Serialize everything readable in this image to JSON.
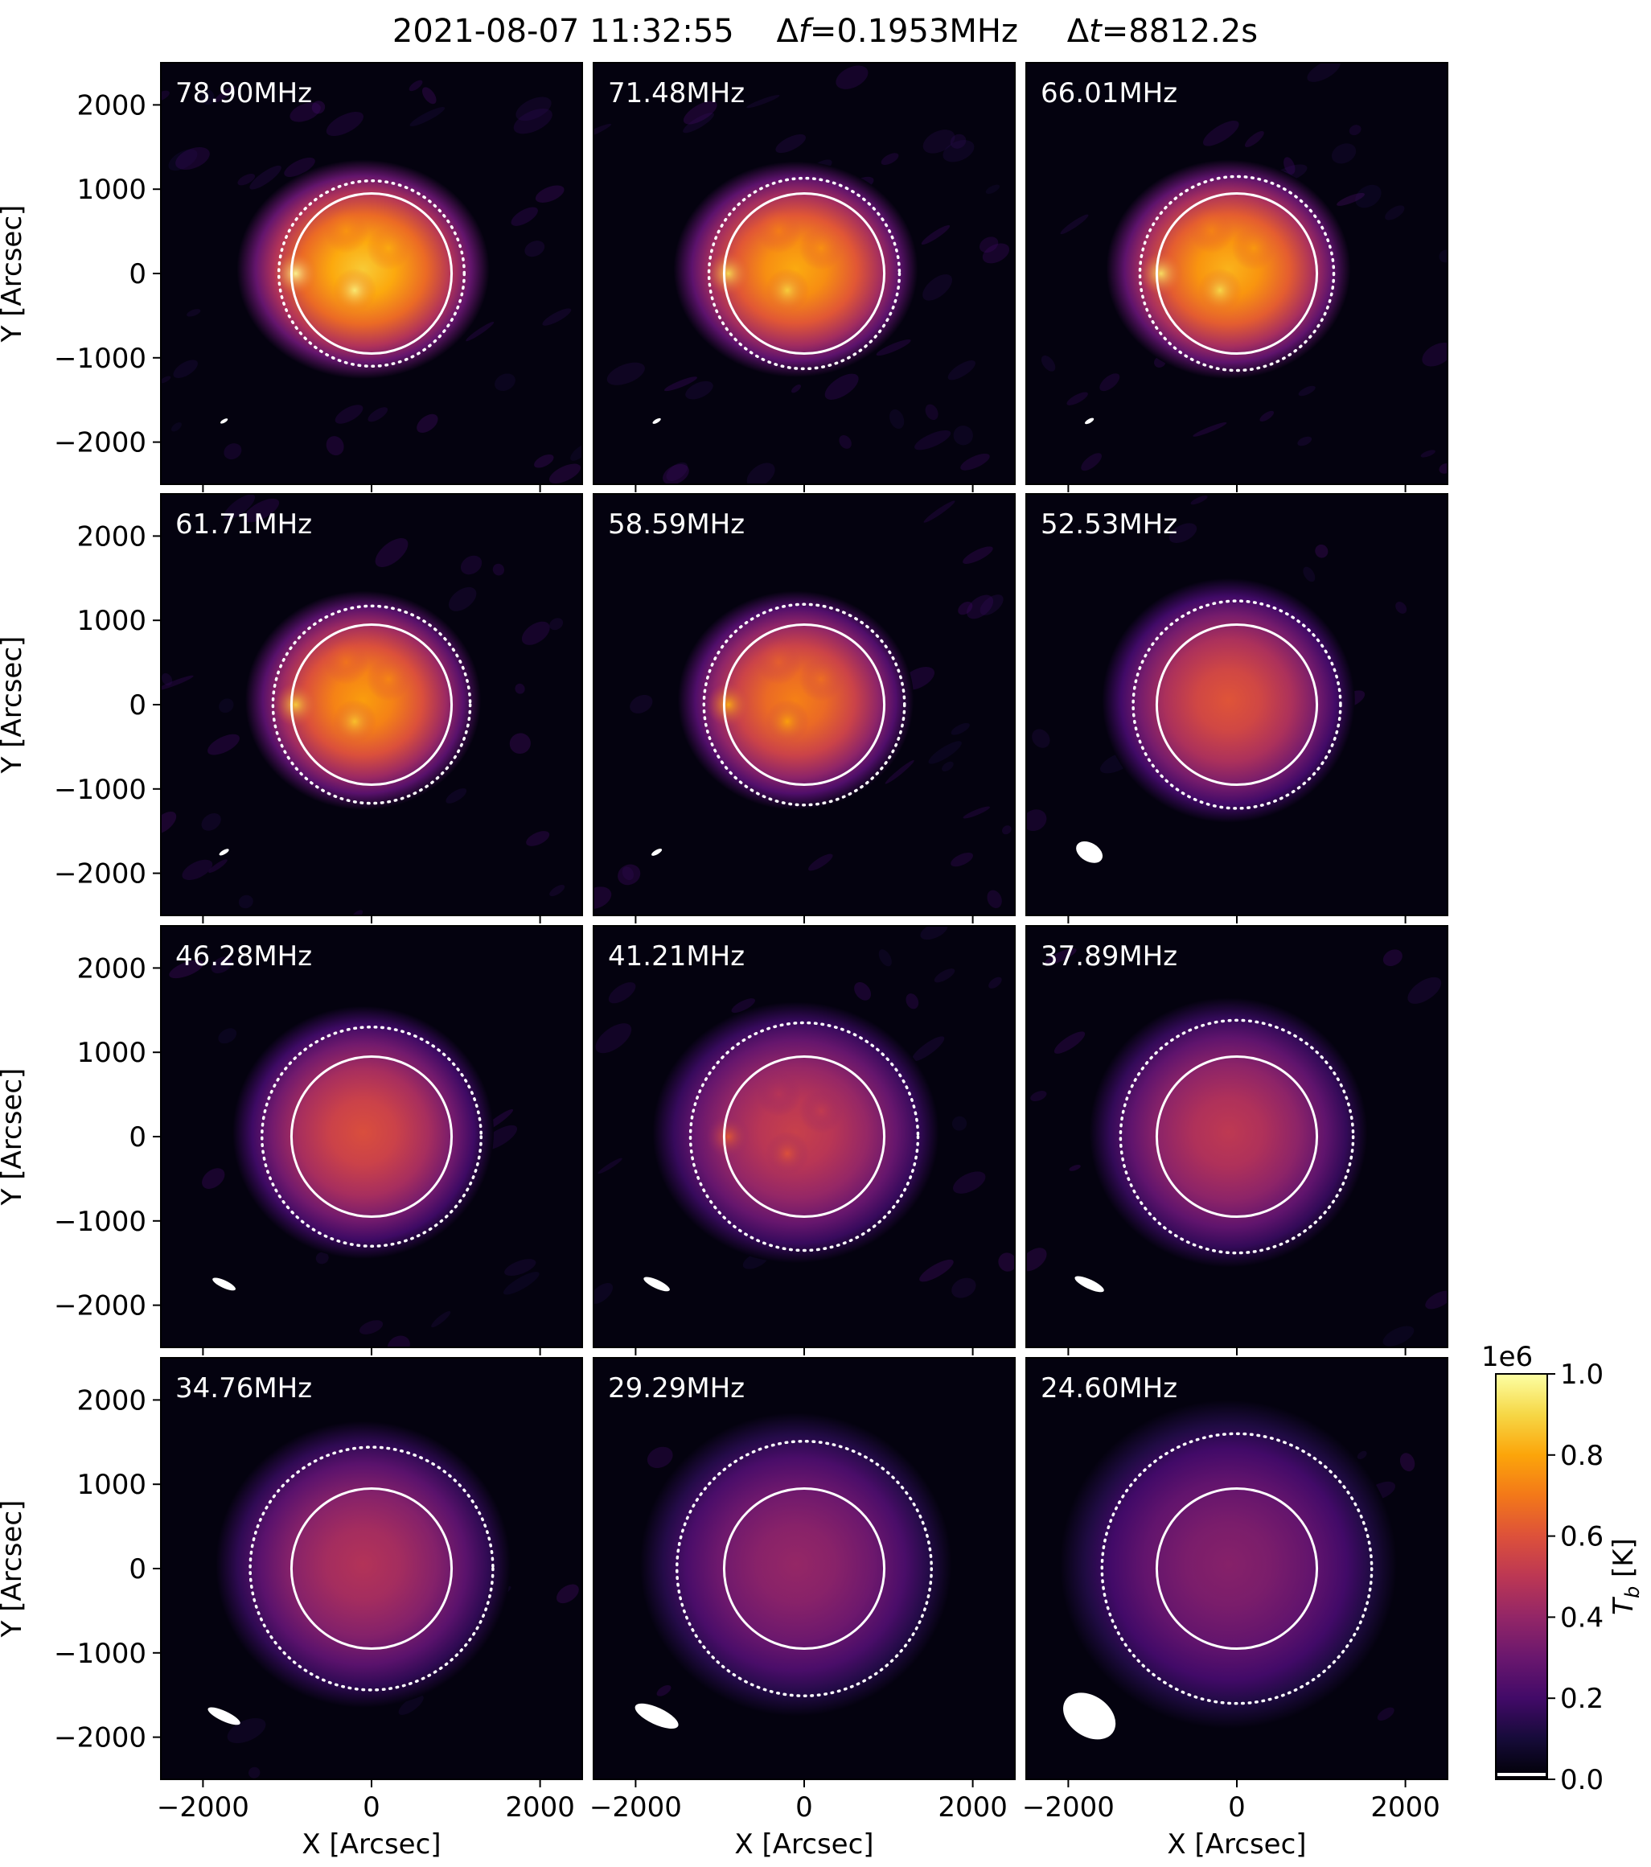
{
  "figure": {
    "title_date": "2021-08-07 11:32:55",
    "title_df_prefix": "Δ",
    "title_df_var": "f",
    "title_df_value": "=0.1953MHz",
    "title_dt_prefix": "Δ",
    "title_dt_var": "t",
    "title_dt_value": "=8812.2s"
  },
  "chart_data": {
    "type": "heatmap",
    "xlabel": "X [Arcsec]",
    "ylabel": "Y [Arcsec]",
    "xlim": [
      -2500,
      2500
    ],
    "ylim": [
      -2500,
      2500
    ],
    "xticks": [
      -2000,
      0,
      2000
    ],
    "yticks": [
      2000,
      1000,
      0,
      -1000,
      -2000
    ],
    "colormap": "inferno",
    "solar_disk_radius_arcsec": 950,
    "colorbar": {
      "label_var": "T",
      "label_sub": "b",
      "label_unit": " [K]",
      "multiplier": "1e6",
      "range": [
        0.0,
        1.0
      ],
      "ticks": [
        "0.0",
        "0.2",
        "0.4",
        "0.6",
        "0.8",
        "1.0"
      ]
    },
    "panels": [
      {
        "label": "78.90MHz",
        "dotted_radius_arcsec": 1100,
        "peak_tb": 0.95,
        "source_halfsize_arcsec": [
          1500,
          1300
        ],
        "beam_arcsec": [
          50,
          20
        ],
        "beam_angle_deg": -30,
        "noise": 0.12
      },
      {
        "label": "71.48MHz",
        "dotted_radius_arcsec": 1130,
        "peak_tb": 0.88,
        "source_halfsize_arcsec": [
          1450,
          1280
        ],
        "beam_arcsec": [
          55,
          22
        ],
        "beam_angle_deg": -30,
        "noise": 0.09
      },
      {
        "label": "66.01MHz",
        "dotted_radius_arcsec": 1150,
        "peak_tb": 0.9,
        "source_halfsize_arcsec": [
          1450,
          1300
        ],
        "beam_arcsec": [
          60,
          24
        ],
        "beam_angle_deg": -30,
        "noise": 0.08
      },
      {
        "label": "61.71MHz",
        "dotted_radius_arcsec": 1170,
        "peak_tb": 0.85,
        "source_halfsize_arcsec": [
          1400,
          1300
        ],
        "beam_arcsec": [
          65,
          25
        ],
        "beam_angle_deg": -30,
        "noise": 0.07
      },
      {
        "label": "58.59MHz",
        "dotted_radius_arcsec": 1190,
        "peak_tb": 0.78,
        "source_halfsize_arcsec": [
          1400,
          1300
        ],
        "beam_arcsec": [
          70,
          27
        ],
        "beam_angle_deg": -30,
        "noise": 0.06
      },
      {
        "label": "52.53MHz",
        "dotted_radius_arcsec": 1230,
        "peak_tb": 0.66,
        "source_halfsize_arcsec": [
          1500,
          1450
        ],
        "beam_arcsec": [
          170,
          110
        ],
        "beam_angle_deg": 30,
        "noise": 0.03
      },
      {
        "label": "46.28MHz",
        "dotted_radius_arcsec": 1300,
        "peak_tb": 0.64,
        "source_halfsize_arcsec": [
          1550,
          1500
        ],
        "beam_arcsec": [
          150,
          45
        ],
        "beam_angle_deg": 25,
        "noise": 0.04
      },
      {
        "label": "41.21MHz",
        "dotted_radius_arcsec": 1350,
        "peak_tb": 0.58,
        "source_halfsize_arcsec": [
          1700,
          1550
        ],
        "beam_arcsec": [
          170,
          50
        ],
        "beam_angle_deg": 25,
        "noise": 0.06
      },
      {
        "label": "37.89MHz",
        "dotted_radius_arcsec": 1380,
        "peak_tb": 0.55,
        "source_halfsize_arcsec": [
          1650,
          1600
        ],
        "beam_arcsec": [
          190,
          55
        ],
        "beam_angle_deg": 25,
        "noise": 0.03
      },
      {
        "label": "34.76MHz",
        "dotted_radius_arcsec": 1440,
        "peak_tb": 0.52,
        "source_halfsize_arcsec": [
          1750,
          1700
        ],
        "beam_arcsec": [
          210,
          60
        ],
        "beam_angle_deg": 25,
        "noise": 0.02
      },
      {
        "label": "29.29MHz",
        "dotted_radius_arcsec": 1510,
        "peak_tb": 0.44,
        "source_halfsize_arcsec": [
          1850,
          1800
        ],
        "beam_arcsec": [
          280,
          100
        ],
        "beam_angle_deg": 25,
        "noise": 0.01
      },
      {
        "label": "24.60MHz",
        "dotted_radius_arcsec": 1600,
        "peak_tb": 0.4,
        "source_halfsize_arcsec": [
          2000,
          1950
        ],
        "beam_arcsec": [
          340,
          240
        ],
        "beam_angle_deg": 35,
        "noise": 0.01
      }
    ]
  }
}
